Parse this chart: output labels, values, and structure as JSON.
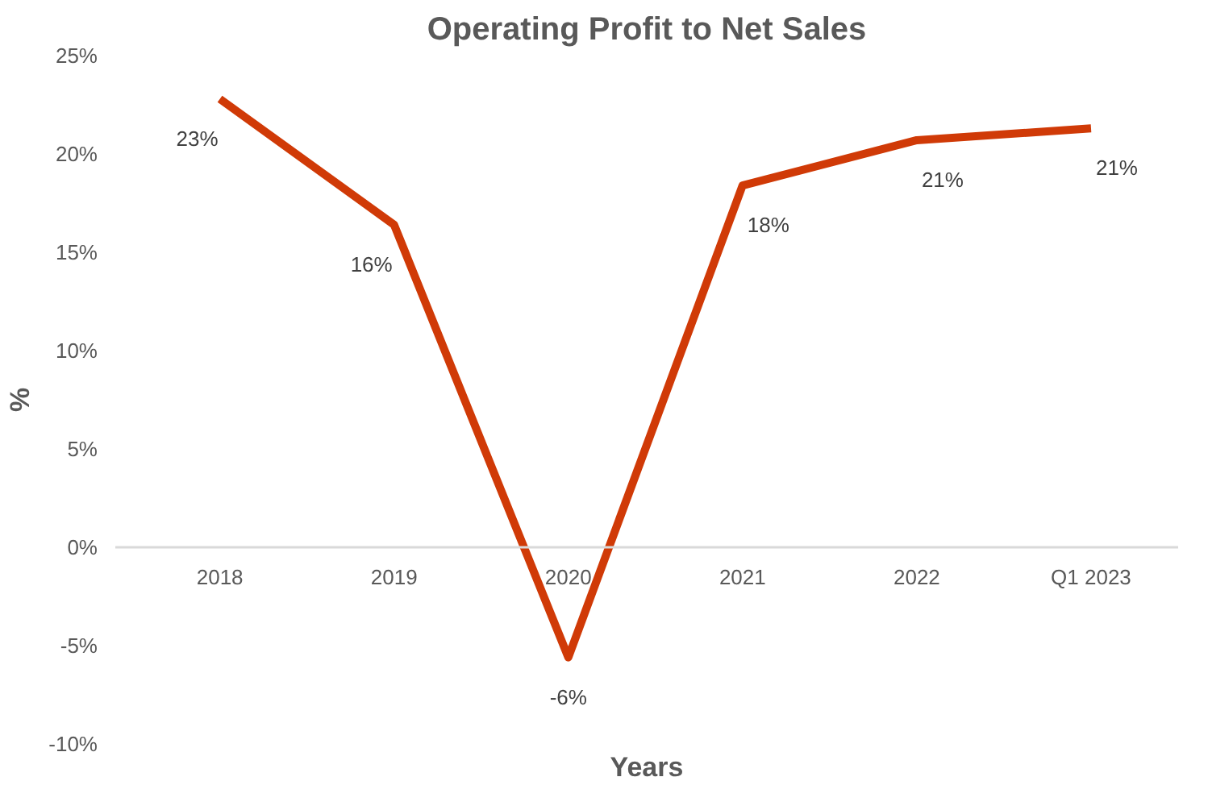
{
  "chart_data": {
    "type": "line",
    "title": "Operating Profit to Net Sales",
    "xlabel": "Years",
    "ylabel": "%",
    "categories": [
      "2018",
      "2019",
      "2020",
      "2021",
      "2022",
      "Q1 2023"
    ],
    "series": [
      {
        "color": "#d03a07",
        "values": [
          22.8,
          16.4,
          -5.6,
          18.4,
          20.7,
          21.3
        ],
        "value_labels": [
          "23%",
          "16%",
          "-6%",
          "18%",
          "21%",
          "21%"
        ]
      }
    ],
    "ylim": [
      -10,
      25
    ],
    "yticks": [
      {
        "value": -10,
        "label": "-10%"
      },
      {
        "value": -5,
        "label": "-5%"
      },
      {
        "value": 0,
        "label": "0%"
      },
      {
        "value": 5,
        "label": "5%"
      },
      {
        "value": 10,
        "label": "10%"
      },
      {
        "value": 15,
        "label": "15%"
      },
      {
        "value": 20,
        "label": "20%"
      },
      {
        "value": 25,
        "label": "25%"
      }
    ],
    "grid": false,
    "marker": "none",
    "line_style": "solid"
  }
}
